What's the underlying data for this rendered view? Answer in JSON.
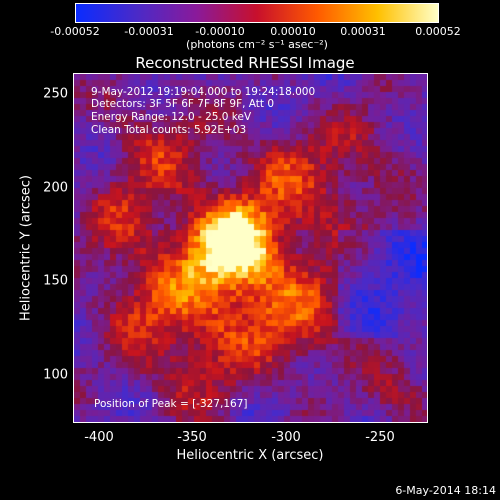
{
  "colorbar": {
    "ticks": [
      "-0.00052",
      "-0.00031",
      "-0.00010",
      "0.00010",
      "0.00031",
      "0.00052"
    ],
    "units": "(photons cm⁻² s⁻¹ asec⁻²)",
    "colors": [
      "#0a2cff",
      "#4a2ac8",
      "#8a1a9a",
      "#c8102c",
      "#ff5a00",
      "#ffc000",
      "#ffffc8"
    ]
  },
  "title": "Reconstructed RHESSI Image",
  "info": {
    "time_range": "9-May-2012 19:19:04.000 to 19:24:18.000",
    "detectors": "Detectors: 3F 5F 6F 7F 8F 9F, Att 0",
    "energy": "Energy Range: 12.0 - 25.0 keV",
    "clean": "Clean     Total counts: 5.92E+03",
    "peak": "Position of Peak = [-327,167]"
  },
  "axes": {
    "xlabel": "Heliocentric X (arcsec)",
    "ylabel": "Heliocentric Y (arcsec)",
    "xticks": [
      "-400",
      "-350",
      "-300",
      "-250"
    ],
    "yticks": [
      "250",
      "200",
      "150",
      "100"
    ]
  },
  "footer": {
    "stamp": "6-May-2014 18:14"
  }
}
